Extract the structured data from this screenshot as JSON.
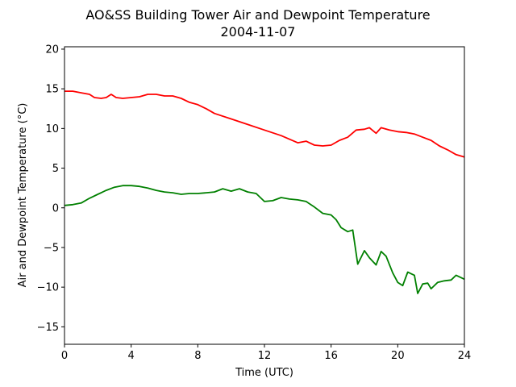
{
  "chart_data": {
    "type": "line",
    "title": "AO&SS Building Tower Air and Dewpoint Temperature",
    "subtitle": "2004-11-07",
    "xlabel": "Time (UTC)",
    "ylabel": "Air and Dewpoint Temperature (°C)",
    "xlim": [
      0,
      24
    ],
    "ylim": [
      -17.2,
      20.3
    ],
    "xticks": [
      0,
      4,
      8,
      12,
      16,
      20,
      24
    ],
    "xtick_labels": [
      "0",
      "4",
      "8",
      "12",
      "16",
      "20",
      "24"
    ],
    "yticks": [
      20,
      15,
      10,
      5,
      0,
      -5,
      -10,
      -15
    ],
    "ytick_labels": [
      "20",
      "15",
      "10",
      "5",
      "0",
      "−5",
      "−10",
      "−15"
    ],
    "grid": false,
    "legend": "none",
    "series": [
      {
        "color": "#ff0000",
        "points": [
          [
            0,
            14.7
          ],
          [
            0.5,
            14.7
          ],
          [
            1,
            14.5
          ],
          [
            1.5,
            14.3
          ],
          [
            1.8,
            13.9
          ],
          [
            2.2,
            13.8
          ],
          [
            2.5,
            13.9
          ],
          [
            2.8,
            14.3
          ],
          [
            3.1,
            13.9
          ],
          [
            3.5,
            13.8
          ],
          [
            4,
            13.9
          ],
          [
            4.5,
            14.0
          ],
          [
            5,
            14.3
          ],
          [
            5.5,
            14.3
          ],
          [
            6,
            14.1
          ],
          [
            6.5,
            14.1
          ],
          [
            7,
            13.8
          ],
          [
            7.5,
            13.3
          ],
          [
            8,
            13.0
          ],
          [
            8.5,
            12.5
          ],
          [
            9,
            11.9
          ],
          [
            10,
            11.2
          ],
          [
            11,
            10.5
          ],
          [
            12,
            9.8
          ],
          [
            13,
            9.1
          ],
          [
            14,
            8.2
          ],
          [
            14.5,
            8.4
          ],
          [
            15,
            7.9
          ],
          [
            15.5,
            7.8
          ],
          [
            16,
            7.9
          ],
          [
            16.5,
            8.5
          ],
          [
            17,
            8.9
          ],
          [
            17.5,
            9.8
          ],
          [
            18,
            9.9
          ],
          [
            18.3,
            10.1
          ],
          [
            18.7,
            9.4
          ],
          [
            19,
            10.1
          ],
          [
            19.5,
            9.8
          ],
          [
            20,
            9.6
          ],
          [
            20.5,
            9.5
          ],
          [
            21,
            9.3
          ],
          [
            21.5,
            8.9
          ],
          [
            22,
            8.5
          ],
          [
            22.5,
            7.8
          ],
          [
            23,
            7.3
          ],
          [
            23.5,
            6.7
          ],
          [
            24,
            6.4
          ]
        ]
      },
      {
        "color": "#008000",
        "points": [
          [
            0,
            0.3
          ],
          [
            0.5,
            0.4
          ],
          [
            1,
            0.6
          ],
          [
            1.5,
            1.2
          ],
          [
            2,
            1.7
          ],
          [
            2.5,
            2.2
          ],
          [
            3,
            2.6
          ],
          [
            3.5,
            2.8
          ],
          [
            4,
            2.8
          ],
          [
            4.5,
            2.7
          ],
          [
            5,
            2.5
          ],
          [
            5.5,
            2.2
          ],
          [
            6,
            2.0
          ],
          [
            6.5,
            1.9
          ],
          [
            7,
            1.7
          ],
          [
            7.5,
            1.8
          ],
          [
            8,
            1.8
          ],
          [
            8.5,
            1.9
          ],
          [
            9,
            2.0
          ],
          [
            9.5,
            2.4
          ],
          [
            10,
            2.1
          ],
          [
            10.5,
            2.4
          ],
          [
            11,
            2.0
          ],
          [
            11.5,
            1.8
          ],
          [
            12,
            0.8
          ],
          [
            12.5,
            0.9
          ],
          [
            13,
            1.3
          ],
          [
            13.5,
            1.1
          ],
          [
            14,
            1.0
          ],
          [
            14.5,
            0.8
          ],
          [
            15,
            0.1
          ],
          [
            15.5,
            -0.7
          ],
          [
            16,
            -0.9
          ],
          [
            16.3,
            -1.5
          ],
          [
            16.6,
            -2.5
          ],
          [
            17,
            -3.0
          ],
          [
            17.3,
            -2.8
          ],
          [
            17.6,
            -7.1
          ],
          [
            18,
            -5.4
          ],
          [
            18.3,
            -6.3
          ],
          [
            18.7,
            -7.2
          ],
          [
            19,
            -5.5
          ],
          [
            19.3,
            -6.1
          ],
          [
            19.7,
            -8.2
          ],
          [
            20,
            -9.4
          ],
          [
            20.3,
            -9.8
          ],
          [
            20.6,
            -8.1
          ],
          [
            21,
            -8.5
          ],
          [
            21.2,
            -10.8
          ],
          [
            21.5,
            -9.6
          ],
          [
            21.8,
            -9.5
          ],
          [
            22,
            -10.2
          ],
          [
            22.4,
            -9.4
          ],
          [
            22.8,
            -9.2
          ],
          [
            23.2,
            -9.1
          ],
          [
            23.5,
            -8.5
          ],
          [
            24,
            -9.0
          ]
        ]
      }
    ]
  }
}
